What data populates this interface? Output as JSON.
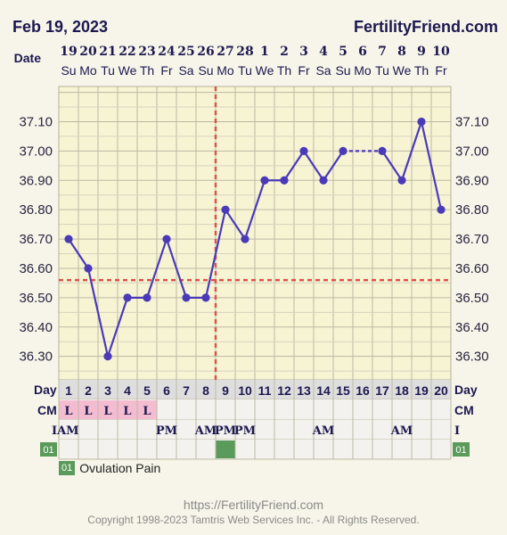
{
  "header": {
    "date": "Feb 19, 2023",
    "site": "FertilityFriend.com"
  },
  "labels": {
    "date_row": "Date",
    "day_row": "Day",
    "cm_row": "CM",
    "time_row_left": "IAM",
    "time_row_right": "I",
    "symptom_code": "01"
  },
  "legend": {
    "code": "01",
    "label": "Ovulation Pain"
  },
  "footer": {
    "url": "https://FertilityFriend.com",
    "copyright": "Copyright 1998-2023 Tamtris Web Services Inc. - All Rights Reserved."
  },
  "colors": {
    "line": "#4a3ab8",
    "coverline": "#d9534f",
    "cm_fill": "#f4bcd0",
    "symptom_fill": "#5a9a5a"
  },
  "chart_data": {
    "type": "line",
    "dates": [
      "19",
      "20",
      "21",
      "22",
      "23",
      "24",
      "25",
      "26",
      "27",
      "28",
      "1",
      "2",
      "3",
      "4",
      "5",
      "6",
      "7",
      "8",
      "9",
      "10"
    ],
    "weekdays": [
      "Su",
      "Mo",
      "Tu",
      "We",
      "Th",
      "Fr",
      "Sa",
      "Su",
      "Mo",
      "Tu",
      "We",
      "Th",
      "Fr",
      "Sa",
      "Su",
      "Mo",
      "Tu",
      "We",
      "Th",
      "Fr"
    ],
    "days": [
      1,
      2,
      3,
      4,
      5,
      6,
      7,
      8,
      9,
      10,
      11,
      12,
      13,
      14,
      15,
      16,
      17,
      18,
      19,
      20
    ],
    "temperatures": [
      36.7,
      36.6,
      36.3,
      36.5,
      36.5,
      36.7,
      36.5,
      36.5,
      36.8,
      36.7,
      36.9,
      36.9,
      37.0,
      36.9,
      37.0,
      null,
      37.0,
      36.9,
      37.1,
      36.8
    ],
    "y_ticks": [
      "36.30",
      "36.40",
      "36.50",
      "36.60",
      "36.70",
      "36.80",
      "36.90",
      "37.00",
      "37.10"
    ],
    "ylim": [
      36.22,
      37.22
    ],
    "coverline": 36.56,
    "ovulation_day": 8,
    "cervical_mucus": [
      "L",
      "L",
      "L",
      "L",
      "L",
      "",
      "",
      "",
      "",
      "",
      "",
      "",
      "",
      "",
      "",
      "",
      "",
      "",
      "",
      ""
    ],
    "time_of_day": [
      "",
      "",
      "",
      "",
      "",
      "PM",
      "",
      "AM",
      "PM",
      "PM",
      "",
      "",
      "",
      "AM",
      "",
      "",
      "",
      "AM",
      "",
      ""
    ],
    "ovulation_pain_days": [
      9
    ],
    "grid": true
  }
}
